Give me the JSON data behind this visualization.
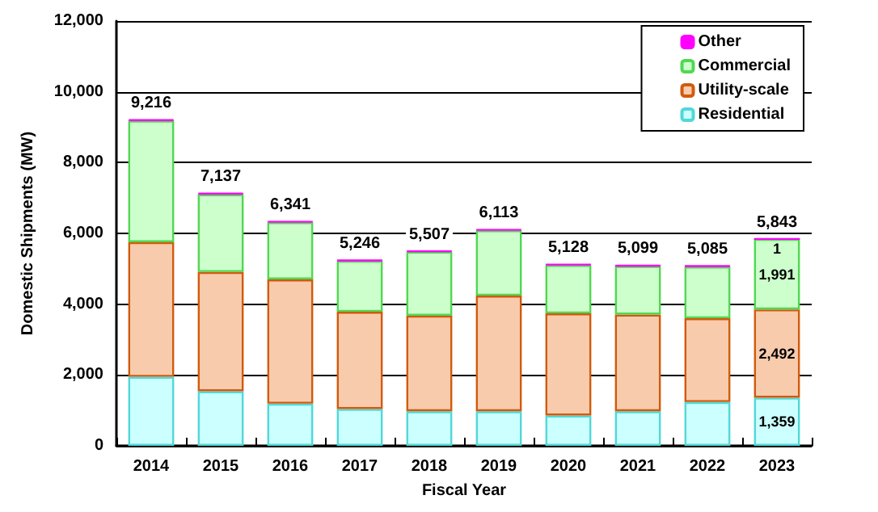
{
  "chart_data": {
    "type": "bar",
    "stacked": true,
    "xlabel": "Fiscal Year",
    "ylabel": "Domestic Shipments (MW)",
    "categories": [
      "2014",
      "2015",
      "2016",
      "2017",
      "2018",
      "2019",
      "2020",
      "2021",
      "2022",
      "2023"
    ],
    "series": [
      {
        "name": "Residential",
        "color": "#ccffff",
        "values": [
          1950,
          1540,
          1190,
          1040,
          975,
          975,
          856,
          975,
          1236,
          1359
        ],
        "value_labels": [
          null,
          null,
          null,
          null,
          null,
          null,
          null,
          null,
          null,
          "1,359"
        ]
      },
      {
        "name": "Utility-scale",
        "color": "#f8cbad",
        "values": [
          3800,
          3370,
          3510,
          2745,
          2700,
          3267,
          2883,
          2732,
          2366,
          2492
        ],
        "value_labels": [
          null,
          null,
          null,
          null,
          null,
          null,
          null,
          null,
          null,
          "2,492"
        ]
      },
      {
        "name": "Commercial",
        "color": "#ccffcc",
        "values": [
          3436,
          2197,
          1616,
          1441,
          1807,
          1846,
          1369,
          1372,
          1463,
          1991
        ],
        "value_labels": [
          null,
          null,
          null,
          null,
          null,
          null,
          null,
          null,
          null,
          "1,991"
        ]
      },
      {
        "name": "Other",
        "color": "#ff00ff",
        "values": [
          30,
          30,
          25,
          20,
          25,
          25,
          20,
          20,
          20,
          1
        ],
        "value_labels": [
          null,
          null,
          null,
          null,
          null,
          null,
          null,
          null,
          null,
          "1"
        ]
      }
    ],
    "totals": [
      "9,216",
      "7,137",
      "6,341",
      "5,246",
      "5,507",
      "6,113",
      "5,128",
      "5,099",
      "5,085",
      "5,843"
    ],
    "ylim": [
      0,
      12000
    ],
    "yticks": [
      {
        "value": 0,
        "label": "0"
      },
      {
        "value": 2000,
        "label": "2,000"
      },
      {
        "value": 4000,
        "label": "4,000"
      },
      {
        "value": 6000,
        "label": "6,000"
      },
      {
        "value": 8000,
        "label": "8,000"
      },
      {
        "value": 10000,
        "label": "10,000"
      },
      {
        "value": 12000,
        "label": "12,000"
      }
    ],
    "grid": "y",
    "legend": "top right"
  }
}
